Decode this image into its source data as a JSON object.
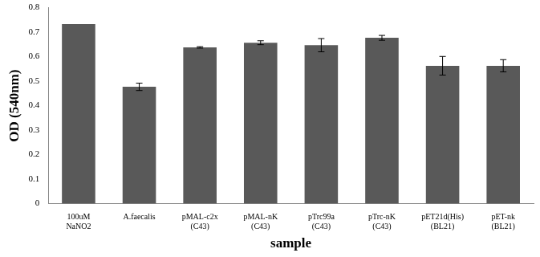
{
  "chart_data": {
    "type": "bar",
    "x_label": "sample",
    "y_label": "OD (540nm)",
    "categories": [
      "100uM NaNO2",
      "A.faecalis",
      "pMAL-c2x (C43)",
      "pMAL-nK (C43)",
      "pTrc99a (C43)",
      "pTrc-nK (C43)",
      "pET21d(His) (BL21)",
      "pET-nk (BL21)"
    ],
    "values": [
      0.733,
      0.477,
      0.638,
      0.657,
      0.647,
      0.677,
      0.563,
      0.563
    ],
    "errors": [
      0,
      0.015,
      0.003,
      0.008,
      0.027,
      0.01,
      0.038,
      0.025
    ],
    "color": "#595959",
    "ylim": [
      0,
      0.8
    ],
    "yticks": [
      0,
      0.1,
      0.2,
      0.3,
      0.4,
      0.5,
      0.6,
      0.7,
      0.8
    ],
    "grid": false
  }
}
